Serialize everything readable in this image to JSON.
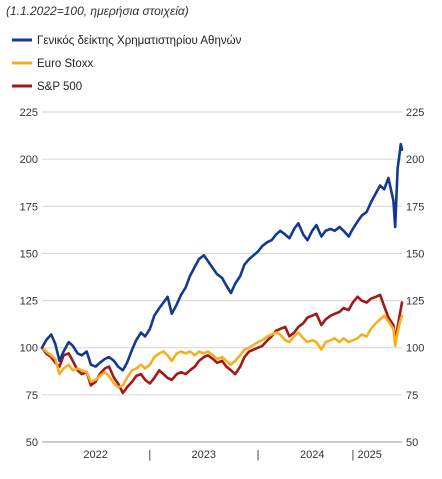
{
  "chart_data": {
    "type": "line",
    "subtitle": "(1.1.2022=100, ημερήσια στοιχεία)",
    "ylim": [
      50,
      225
    ],
    "yticks": [
      50,
      75,
      100,
      125,
      150,
      175,
      200,
      225
    ],
    "y_axis_sides": [
      "left",
      "right"
    ],
    "grid": true,
    "legend_position": "top-left",
    "x_period": {
      "start": "2022-01-01",
      "end": "2025-04-30"
    },
    "x_labels": [
      {
        "label": "2022",
        "date": "2022-07-01"
      },
      {
        "label": "|",
        "date": "2022-12-31"
      },
      {
        "label": "2023",
        "date": "2023-07-01"
      },
      {
        "label": "|",
        "date": "2023-12-31"
      },
      {
        "label": "2024",
        "date": "2024-07-01"
      },
      {
        "label": "| 2025",
        "date": "2025-01-01"
      }
    ],
    "series": [
      {
        "name": "Γενικός δείκτης Χρηματιστηρίου Αθηνών",
        "color": "#123a8e",
        "points": [
          [
            "2022-01-01",
            100
          ],
          [
            "2022-01-15",
            104
          ],
          [
            "2022-02-01",
            107
          ],
          [
            "2022-02-15",
            102
          ],
          [
            "2022-03-01",
            93
          ],
          [
            "2022-03-15",
            98
          ],
          [
            "2022-04-01",
            103
          ],
          [
            "2022-04-15",
            101
          ],
          [
            "2022-05-01",
            97
          ],
          [
            "2022-05-15",
            96
          ],
          [
            "2022-06-01",
            98
          ],
          [
            "2022-06-15",
            91
          ],
          [
            "2022-07-01",
            90
          ],
          [
            "2022-07-15",
            92
          ],
          [
            "2022-08-01",
            94
          ],
          [
            "2022-08-15",
            95
          ],
          [
            "2022-09-01",
            93
          ],
          [
            "2022-09-15",
            90
          ],
          [
            "2022-10-01",
            88
          ],
          [
            "2022-10-15",
            92
          ],
          [
            "2022-11-01",
            99
          ],
          [
            "2022-11-15",
            104
          ],
          [
            "2022-12-01",
            108
          ],
          [
            "2022-12-15",
            106
          ],
          [
            "2022-12-31",
            110
          ],
          [
            "2023-01-15",
            117
          ],
          [
            "2023-02-01",
            121
          ],
          [
            "2023-02-15",
            124
          ],
          [
            "2023-03-01",
            127
          ],
          [
            "2023-03-15",
            118
          ],
          [
            "2023-04-01",
            123
          ],
          [
            "2023-04-15",
            128
          ],
          [
            "2023-05-01",
            132
          ],
          [
            "2023-05-15",
            138
          ],
          [
            "2023-06-01",
            143
          ],
          [
            "2023-06-15",
            147
          ],
          [
            "2023-07-01",
            149
          ],
          [
            "2023-07-15",
            146
          ],
          [
            "2023-08-01",
            142
          ],
          [
            "2023-08-15",
            139
          ],
          [
            "2023-09-01",
            137
          ],
          [
            "2023-09-15",
            133
          ],
          [
            "2023-10-01",
            129
          ],
          [
            "2023-10-15",
            134
          ],
          [
            "2023-11-01",
            138
          ],
          [
            "2023-11-15",
            144
          ],
          [
            "2023-12-01",
            147
          ],
          [
            "2023-12-31",
            151
          ],
          [
            "2024-01-15",
            154
          ],
          [
            "2024-02-01",
            156
          ],
          [
            "2024-02-15",
            157
          ],
          [
            "2024-03-01",
            160
          ],
          [
            "2024-03-15",
            162
          ],
          [
            "2024-04-01",
            160
          ],
          [
            "2024-04-15",
            158
          ],
          [
            "2024-05-01",
            163
          ],
          [
            "2024-05-15",
            166
          ],
          [
            "2024-06-01",
            160
          ],
          [
            "2024-06-15",
            157
          ],
          [
            "2024-07-01",
            162
          ],
          [
            "2024-07-15",
            165
          ],
          [
            "2024-08-01",
            159
          ],
          [
            "2024-08-15",
            162
          ],
          [
            "2024-09-01",
            163
          ],
          [
            "2024-09-15",
            162
          ],
          [
            "2024-10-01",
            164
          ],
          [
            "2024-10-15",
            162
          ],
          [
            "2024-11-01",
            159
          ],
          [
            "2024-11-15",
            163
          ],
          [
            "2024-12-01",
            167
          ],
          [
            "2024-12-15",
            170
          ],
          [
            "2025-01-01",
            172
          ],
          [
            "2025-01-15",
            177
          ],
          [
            "2025-02-01",
            182
          ],
          [
            "2025-02-15",
            186
          ],
          [
            "2025-03-01",
            184
          ],
          [
            "2025-03-15",
            190
          ],
          [
            "2025-04-01",
            178
          ],
          [
            "2025-04-07",
            164
          ],
          [
            "2025-04-15",
            195
          ],
          [
            "2025-04-22",
            203
          ],
          [
            "2025-04-26",
            208
          ],
          [
            "2025-04-30",
            205
          ]
        ]
      },
      {
        "name": "Euro Stoxx",
        "color": "#f5b021",
        "points": [
          [
            "2022-01-01",
            100
          ],
          [
            "2022-01-15",
            98
          ],
          [
            "2022-02-01",
            96
          ],
          [
            "2022-02-15",
            94
          ],
          [
            "2022-03-01",
            86
          ],
          [
            "2022-03-15",
            89
          ],
          [
            "2022-04-01",
            91
          ],
          [
            "2022-04-15",
            88
          ],
          [
            "2022-05-01",
            89
          ],
          [
            "2022-05-15",
            88
          ],
          [
            "2022-06-01",
            87
          ],
          [
            "2022-06-15",
            82
          ],
          [
            "2022-07-01",
            83
          ],
          [
            "2022-07-15",
            85
          ],
          [
            "2022-08-01",
            87
          ],
          [
            "2022-08-15",
            85
          ],
          [
            "2022-09-01",
            81
          ],
          [
            "2022-09-15",
            79
          ],
          [
            "2022-10-01",
            80
          ],
          [
            "2022-10-15",
            84
          ],
          [
            "2022-11-01",
            88
          ],
          [
            "2022-11-15",
            89
          ],
          [
            "2022-12-01",
            91
          ],
          [
            "2022-12-15",
            89
          ],
          [
            "2022-12-31",
            91
          ],
          [
            "2023-01-15",
            95
          ],
          [
            "2023-02-01",
            97
          ],
          [
            "2023-02-15",
            98
          ],
          [
            "2023-03-01",
            96
          ],
          [
            "2023-03-15",
            93
          ],
          [
            "2023-04-01",
            97
          ],
          [
            "2023-04-15",
            98
          ],
          [
            "2023-05-01",
            97
          ],
          [
            "2023-05-15",
            98
          ],
          [
            "2023-06-01",
            96
          ],
          [
            "2023-06-15",
            98
          ],
          [
            "2023-07-01",
            97
          ],
          [
            "2023-07-15",
            98
          ],
          [
            "2023-08-01",
            96
          ],
          [
            "2023-08-15",
            94
          ],
          [
            "2023-09-01",
            95
          ],
          [
            "2023-09-15",
            93
          ],
          [
            "2023-10-01",
            91
          ],
          [
            "2023-10-15",
            93
          ],
          [
            "2023-11-01",
            96
          ],
          [
            "2023-11-15",
            99
          ],
          [
            "2023-12-01",
            100
          ],
          [
            "2023-12-31",
            103
          ],
          [
            "2024-01-15",
            104
          ],
          [
            "2024-02-01",
            106
          ],
          [
            "2024-02-15",
            107
          ],
          [
            "2024-03-01",
            108
          ],
          [
            "2024-03-15",
            107
          ],
          [
            "2024-04-01",
            104
          ],
          [
            "2024-04-15",
            103
          ],
          [
            "2024-05-01",
            106
          ],
          [
            "2024-05-15",
            108
          ],
          [
            "2024-06-01",
            105
          ],
          [
            "2024-06-15",
            103
          ],
          [
            "2024-07-01",
            104
          ],
          [
            "2024-07-15",
            103
          ],
          [
            "2024-08-01",
            99
          ],
          [
            "2024-08-15",
            103
          ],
          [
            "2024-09-01",
            104
          ],
          [
            "2024-09-15",
            105
          ],
          [
            "2024-10-01",
            103
          ],
          [
            "2024-10-15",
            105
          ],
          [
            "2024-11-01",
            103
          ],
          [
            "2024-11-15",
            104
          ],
          [
            "2024-12-01",
            105
          ],
          [
            "2024-12-15",
            107
          ],
          [
            "2025-01-01",
            106
          ],
          [
            "2025-01-15",
            110
          ],
          [
            "2025-02-01",
            113
          ],
          [
            "2025-02-15",
            115
          ],
          [
            "2025-03-01",
            117
          ],
          [
            "2025-03-15",
            114
          ],
          [
            "2025-04-01",
            110
          ],
          [
            "2025-04-07",
            101
          ],
          [
            "2025-04-15",
            108
          ],
          [
            "2025-04-22",
            113
          ],
          [
            "2025-04-30",
            117
          ]
        ]
      },
      {
        "name": "S&P 500",
        "color": "#a31818",
        "points": [
          [
            "2022-01-01",
            100
          ],
          [
            "2022-01-15",
            97
          ],
          [
            "2022-02-01",
            95
          ],
          [
            "2022-02-15",
            92
          ],
          [
            "2022-03-01",
            90
          ],
          [
            "2022-03-15",
            96
          ],
          [
            "2022-04-01",
            97
          ],
          [
            "2022-04-15",
            93
          ],
          [
            "2022-05-01",
            88
          ],
          [
            "2022-05-15",
            86
          ],
          [
            "2022-06-01",
            87
          ],
          [
            "2022-06-15",
            80
          ],
          [
            "2022-07-01",
            82
          ],
          [
            "2022-07-15",
            86
          ],
          [
            "2022-08-01",
            89
          ],
          [
            "2022-08-15",
            90
          ],
          [
            "2022-09-01",
            84
          ],
          [
            "2022-09-15",
            81
          ],
          [
            "2022-10-01",
            76
          ],
          [
            "2022-10-15",
            79
          ],
          [
            "2022-11-01",
            82
          ],
          [
            "2022-11-15",
            85
          ],
          [
            "2022-12-01",
            86
          ],
          [
            "2022-12-15",
            83
          ],
          [
            "2022-12-31",
            81
          ],
          [
            "2023-01-15",
            84
          ],
          [
            "2023-02-01",
            88
          ],
          [
            "2023-02-15",
            86
          ],
          [
            "2023-03-01",
            84
          ],
          [
            "2023-03-15",
            83
          ],
          [
            "2023-04-01",
            86
          ],
          [
            "2023-04-15",
            87
          ],
          [
            "2023-05-01",
            86
          ],
          [
            "2023-05-15",
            88
          ],
          [
            "2023-06-01",
            90
          ],
          [
            "2023-06-15",
            93
          ],
          [
            "2023-07-01",
            95
          ],
          [
            "2023-07-15",
            96
          ],
          [
            "2023-08-01",
            94
          ],
          [
            "2023-08-15",
            92
          ],
          [
            "2023-09-01",
            93
          ],
          [
            "2023-09-15",
            90
          ],
          [
            "2023-10-01",
            88
          ],
          [
            "2023-10-15",
            86
          ],
          [
            "2023-11-01",
            90
          ],
          [
            "2023-11-15",
            95
          ],
          [
            "2023-12-01",
            98
          ],
          [
            "2023-12-31",
            100
          ],
          [
            "2024-01-15",
            101
          ],
          [
            "2024-02-01",
            104
          ],
          [
            "2024-02-15",
            106
          ],
          [
            "2024-03-01",
            109
          ],
          [
            "2024-03-15",
            110
          ],
          [
            "2024-04-01",
            111
          ],
          [
            "2024-04-15",
            106
          ],
          [
            "2024-05-01",
            108
          ],
          [
            "2024-05-15",
            111
          ],
          [
            "2024-06-01",
            113
          ],
          [
            "2024-06-15",
            116
          ],
          [
            "2024-07-01",
            117
          ],
          [
            "2024-07-15",
            118
          ],
          [
            "2024-08-01",
            112
          ],
          [
            "2024-08-15",
            115
          ],
          [
            "2024-09-01",
            117
          ],
          [
            "2024-09-15",
            118
          ],
          [
            "2024-10-01",
            119
          ],
          [
            "2024-10-15",
            121
          ],
          [
            "2024-11-01",
            120
          ],
          [
            "2024-11-15",
            124
          ],
          [
            "2024-12-01",
            127
          ],
          [
            "2024-12-15",
            125
          ],
          [
            "2025-01-01",
            124
          ],
          [
            "2025-01-15",
            126
          ],
          [
            "2025-02-01",
            127
          ],
          [
            "2025-02-15",
            128
          ],
          [
            "2025-03-01",
            122
          ],
          [
            "2025-03-15",
            116
          ],
          [
            "2025-04-01",
            112
          ],
          [
            "2025-04-07",
            103
          ],
          [
            "2025-04-15",
            111
          ],
          [
            "2025-04-22",
            117
          ],
          [
            "2025-04-30",
            124
          ]
        ]
      }
    ]
  }
}
